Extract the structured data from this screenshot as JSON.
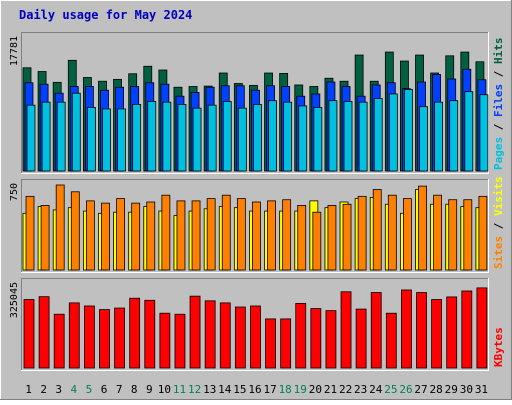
{
  "chart_data": {
    "type": "bar",
    "title": "Daily usage for May 2024",
    "categories": [
      "1",
      "2",
      "3",
      "4",
      "5",
      "6",
      "7",
      "8",
      "9",
      "10",
      "11",
      "12",
      "13",
      "14",
      "15",
      "16",
      "17",
      "18",
      "19",
      "20",
      "21",
      "22",
      "23",
      "24",
      "25",
      "26",
      "27",
      "28",
      "29",
      "30",
      "31"
    ],
    "weekend_days": [
      "4",
      "5",
      "11",
      "12",
      "18",
      "19",
      "25",
      "26"
    ],
    "colors": {
      "background": "#c0c0c0",
      "title": "#0000c0",
      "hits": "#006040",
      "files": "#0040ff",
      "pages": "#00c0e0",
      "visits": "#ffff00",
      "sites": "#ff8000",
      "kbytes": "#ff0000",
      "weekday_label": "#000000",
      "weekend_label": "#00805c"
    },
    "panels": [
      {
        "name": "traffic",
        "max_label": "17781",
        "ylim": [
          0,
          17781
        ],
        "legend": [
          "Pages",
          "Files",
          "Hits"
        ],
        "series": [
          {
            "name": "Hits",
            "values": [
              13800,
              13300,
              11850,
              14800,
              12500,
              12000,
              12250,
              13000,
              14000,
              13500,
              11200,
              11300,
              11350,
              13100,
              11700,
              11450,
              13100,
              13050,
              11500,
              11300,
              12400,
              12000,
              15500,
              12000,
              15900,
              14700,
              15500,
              13100,
              15400,
              15900,
              14600
            ]
          },
          {
            "name": "Files",
            "values": [
              11800,
              11600,
              10400,
              11300,
              11300,
              10800,
              11200,
              11300,
              11800,
              11600,
              10000,
              10500,
              11200,
              11400,
              11400,
              10800,
              11400,
              11300,
              10000,
              10300,
              11900,
              11300,
              10000,
              11500,
              11800,
              11000,
              11900,
              12900,
              12300,
              13600,
              12200
            ]
          },
          {
            "name": "Pages",
            "values": [
              8800,
              9200,
              9200,
              10400,
              8500,
              8300,
              8300,
              8900,
              9300,
              9200,
              8900,
              8400,
              8800,
              9300,
              8400,
              8900,
              9400,
              9200,
              8700,
              8500,
              9400,
              9300,
              9200,
              9700,
              10300,
              10900,
              8600,
              9200,
              9400,
              10600,
              10200
            ]
          }
        ]
      },
      {
        "name": "visits",
        "max_label": "750",
        "ylim": [
          0,
          750
        ],
        "legend": [
          "Sites",
          "Visits"
        ],
        "series": [
          {
            "name": "Visits",
            "values": [
              500,
              560,
              530,
              550,
              520,
              500,
              510,
              510,
              560,
              520,
              480,
              520,
              540,
              560,
              550,
              520,
              520,
              520,
              520,
              610,
              550,
              600,
              630,
              640,
              580,
              500,
              710,
              580,
              580,
              560,
              550
            ]
          },
          {
            "name": "Sites",
            "values": [
              650,
              570,
              750,
              690,
              610,
              590,
              630,
              590,
              600,
              660,
              610,
              610,
              630,
              660,
              630,
              600,
              610,
              620,
              570,
              510,
              570,
              580,
              650,
              710,
              660,
              630,
              740,
              660,
              620,
              620,
              650
            ]
          }
        ]
      },
      {
        "name": "volume",
        "max_label": "325045",
        "ylim": [
          0,
          325045
        ],
        "legend": [
          "KBytes"
        ],
        "series": [
          {
            "name": "KBytes",
            "values": [
              265000,
              276000,
              208000,
              252000,
              240000,
              226000,
              232000,
              270000,
              262000,
              212000,
              208000,
              278000,
              260000,
              252000,
              236000,
              240000,
              190000,
              190000,
              250000,
              230000,
              222000,
              295000,
              228000,
              292000,
              212000,
              302000,
              292000,
              265000,
              275000,
              298000,
              310000
            ]
          }
        ]
      }
    ]
  }
}
